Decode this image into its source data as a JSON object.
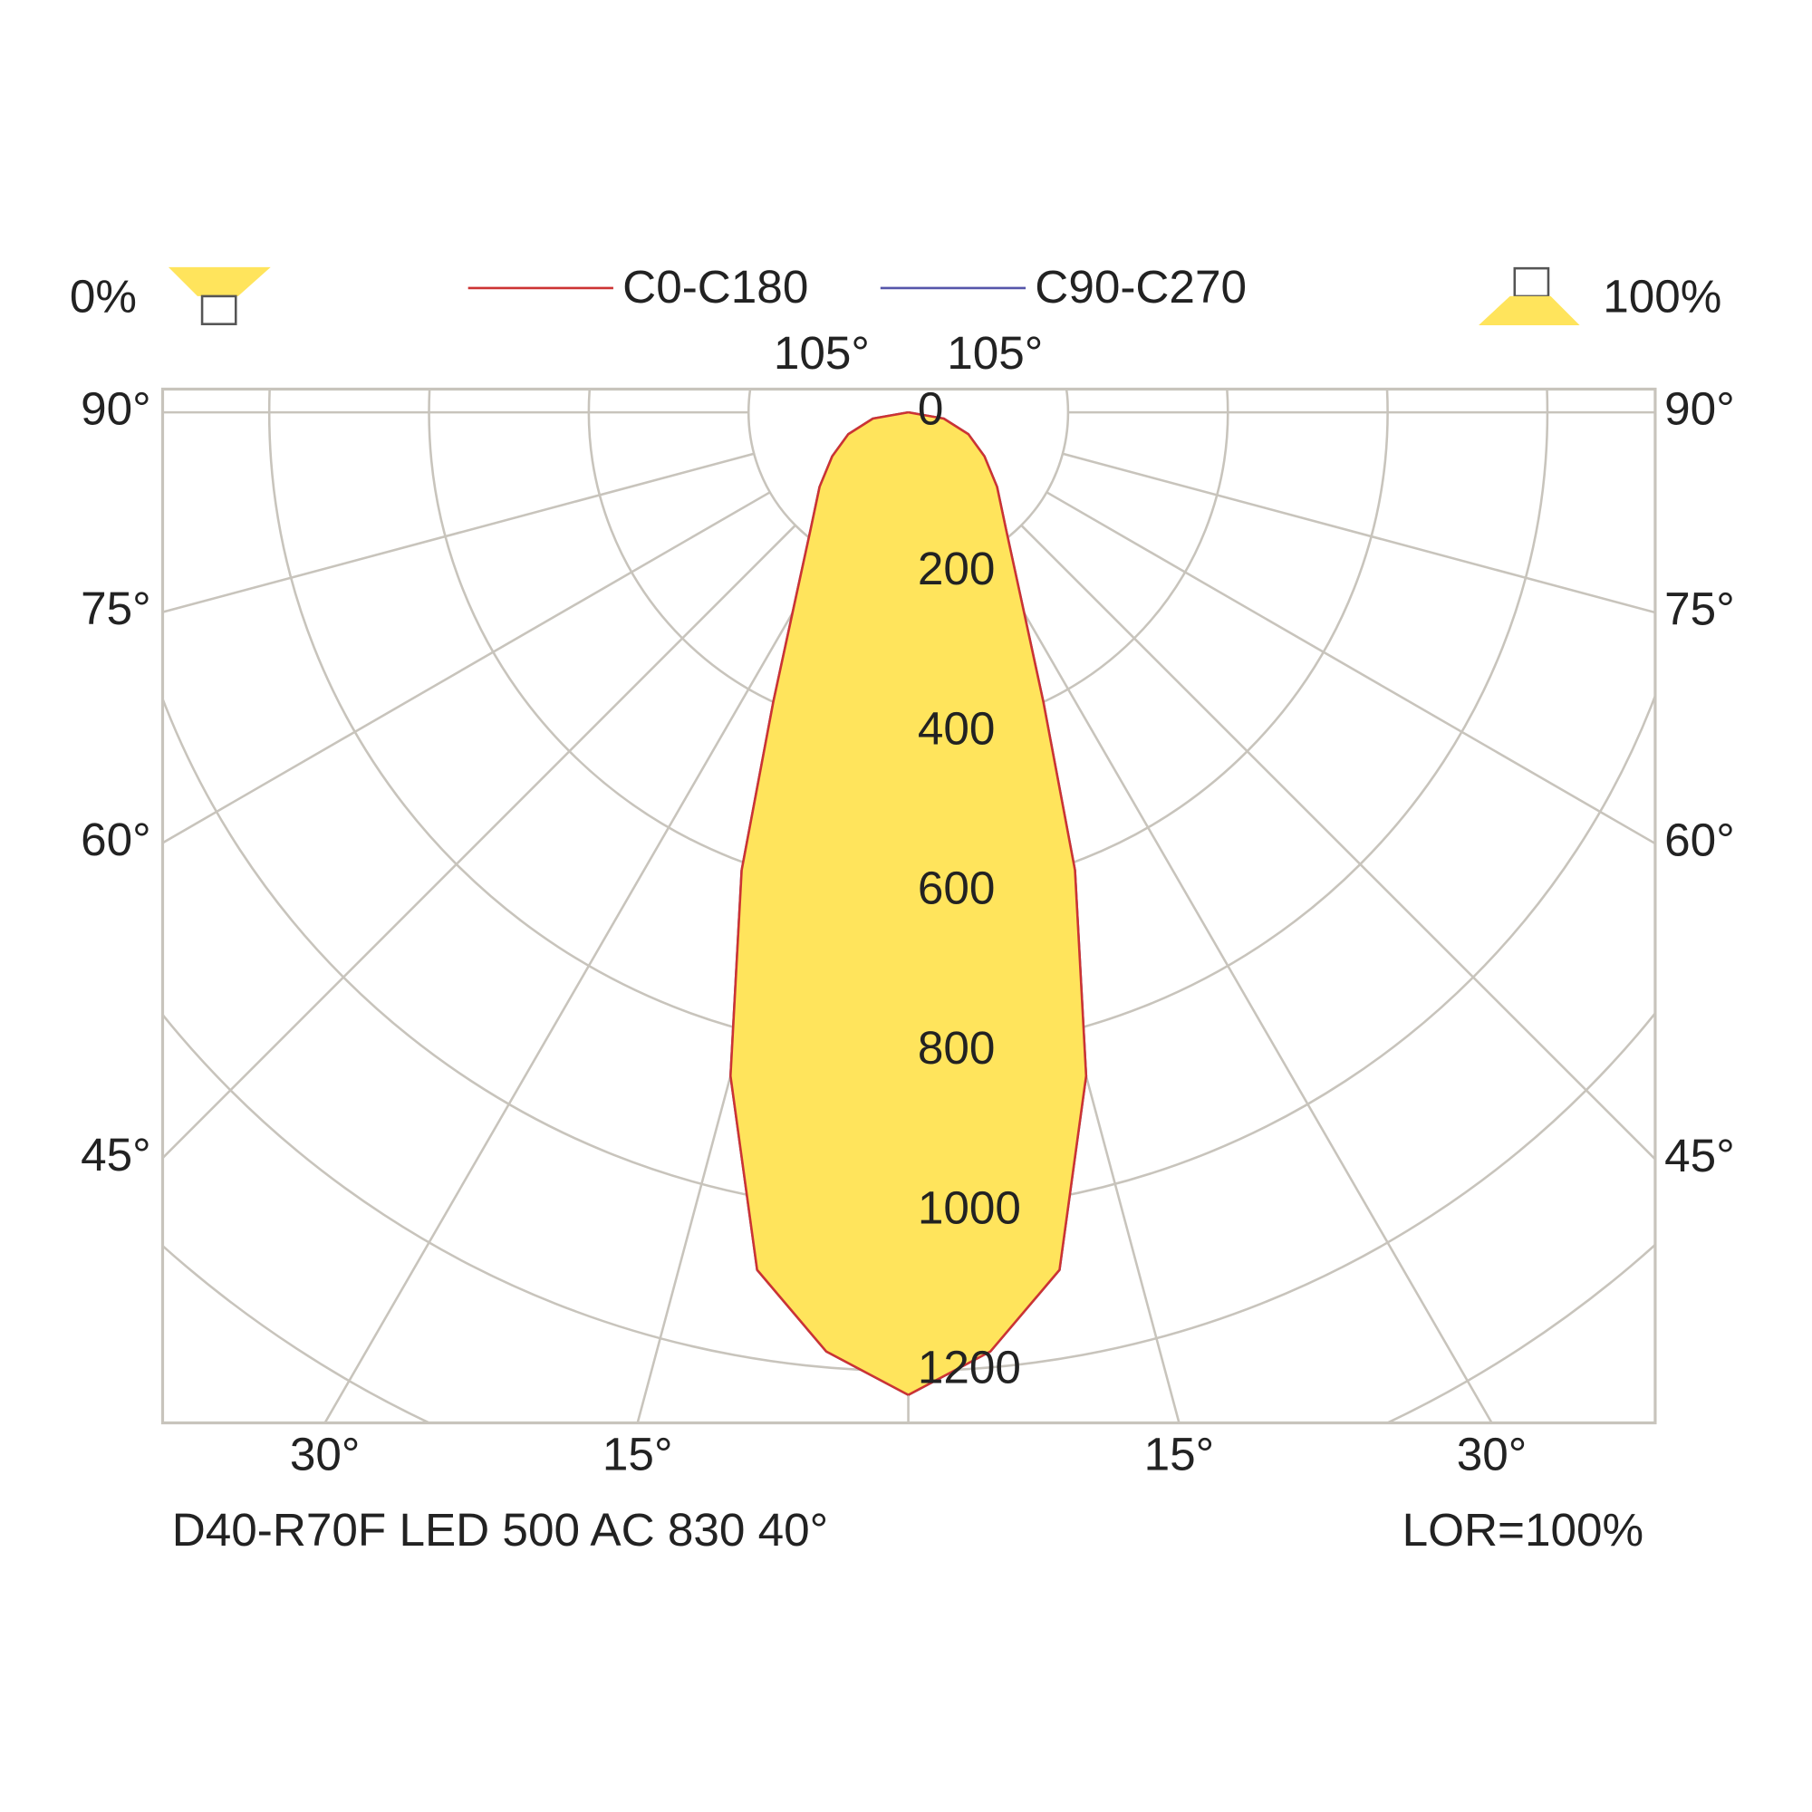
{
  "chart_data": {
    "type": "polar",
    "header_left": "0%",
    "header_right": "100%",
    "footer_left": "D40-R70F LED 500 AC 830 40°",
    "footer_right": "LOR=100%",
    "angles": [
      0,
      5,
      10,
      15,
      20,
      25,
      30,
      40,
      50,
      60,
      70,
      80,
      90
    ],
    "series": [
      {
        "name": "C90-C270",
        "color": "#5555aa",
        "values": [
          1230,
          1180,
          1090,
          860,
          610,
          400,
          290,
          190,
          145,
          110,
          80,
          45,
          0
        ]
      },
      {
        "name": "C0-C180",
        "color": "#cc3333",
        "values": [
          1230,
          1180,
          1090,
          860,
          610,
          400,
          290,
          190,
          145,
          110,
          80,
          45,
          0
        ]
      }
    ],
    "fill": "#ffe45c",
    "rlim": [
      0,
      1265
    ],
    "rticks": [
      0,
      200,
      400,
      600,
      800,
      1000,
      1200
    ],
    "minor_rticks": [
      1400,
      1600
    ],
    "angle_ticks": [
      {
        "value": 15,
        "label": "15°"
      },
      {
        "value": 30,
        "label": "30°"
      },
      {
        "value": 45,
        "label": "45°"
      },
      {
        "value": 60,
        "label": "60°"
      },
      {
        "value": 75,
        "label": "75°"
      },
      {
        "value": 90,
        "label": "90°"
      },
      {
        "value": 105,
        "label": "105°"
      }
    ]
  }
}
